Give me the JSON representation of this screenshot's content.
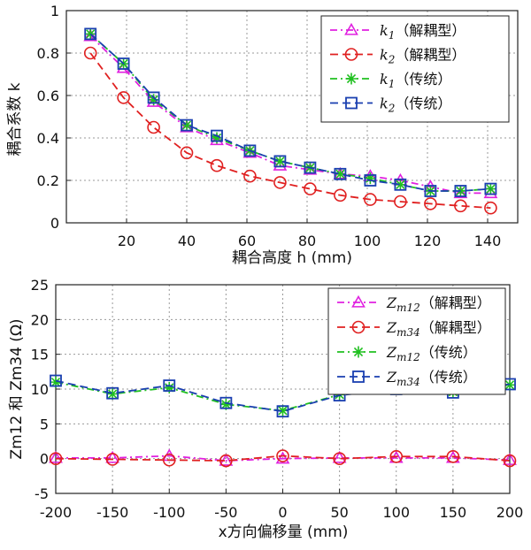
{
  "chart_data": [
    {
      "type": "line",
      "title": "",
      "xlabel": "耦合高度 h (mm)",
      "ylabel": "耦合系数 k",
      "xlim": [
        0,
        150
      ],
      "ylim": [
        0,
        1
      ],
      "xticks": [
        20,
        40,
        60,
        80,
        100,
        120,
        140
      ],
      "yticks": [
        0,
        0.2,
        0.4,
        0.6,
        0.8,
        1
      ],
      "ytick_labels": [
        "0",
        "0.2",
        "0.4",
        "0.6",
        "0.8",
        "1"
      ],
      "grid": true,
      "legend_position": "top-right",
      "x": [
        8,
        19,
        29,
        40,
        50,
        61,
        71,
        81,
        91,
        101,
        111,
        121,
        131,
        141
      ],
      "series": [
        {
          "name": "k1（解耦型）",
          "color": "#e020e0",
          "marker": "triangle",
          "dash": "8 4 2 4",
          "values": [
            0.88,
            0.73,
            0.57,
            0.45,
            0.39,
            0.33,
            0.27,
            0.25,
            0.23,
            0.22,
            0.2,
            0.17,
            0.14,
            0.14
          ]
        },
        {
          "name": "k2（解耦型）",
          "color": "#e02020",
          "marker": "circle",
          "dash": "9 5",
          "values": [
            0.8,
            0.59,
            0.45,
            0.33,
            0.27,
            0.22,
            0.19,
            0.16,
            0.13,
            0.11,
            0.1,
            0.09,
            0.08,
            0.07
          ]
        },
        {
          "name": "k1（传统）",
          "color": "#20c020",
          "marker": "star",
          "dash": "8 4 2 4",
          "values": [
            0.89,
            0.75,
            0.58,
            0.46,
            0.4,
            0.34,
            0.29,
            0.26,
            0.23,
            0.21,
            0.18,
            0.15,
            0.15,
            0.16
          ]
        },
        {
          "name": "k2（传统）",
          "color": "#1a3fb0",
          "marker": "square",
          "dash": "9 5",
          "values": [
            0.89,
            0.75,
            0.59,
            0.46,
            0.41,
            0.34,
            0.29,
            0.26,
            0.23,
            0.2,
            0.18,
            0.15,
            0.15,
            0.16
          ]
        }
      ]
    },
    {
      "type": "line",
      "title": "",
      "xlabel": "x方向偏移量 (mm)",
      "ylabel": "Zm12 和 Zm34 (Ω)",
      "xlim": [
        -200,
        200
      ],
      "ylim": [
        -5,
        25
      ],
      "xticks": [
        -200,
        -150,
        -100,
        -50,
        0,
        50,
        100,
        150,
        200
      ],
      "yticks": [
        -5,
        0,
        5,
        10,
        15,
        20,
        25
      ],
      "grid": true,
      "legend_position": "top-right",
      "x": [
        -200,
        -150,
        -100,
        -50,
        0,
        50,
        100,
        150,
        200
      ],
      "series": [
        {
          "name": "Zm12（解耦型）",
          "color": "#e020e0",
          "marker": "triangle",
          "dash": "8 4 2 4",
          "values": [
            0.1,
            0.1,
            0.4,
            -0.3,
            0.0,
            0.1,
            0.1,
            0.1,
            -0.2
          ]
        },
        {
          "name": "Zm34（解耦型）",
          "color": "#e02020",
          "marker": "circle",
          "dash": "9 5",
          "values": [
            0.0,
            -0.1,
            -0.2,
            -0.3,
            0.4,
            0.0,
            0.3,
            0.3,
            -0.3
          ]
        },
        {
          "name": "Zm12（传统）",
          "color": "#20c020",
          "marker": "star",
          "dash": "8 4 2 4",
          "values": [
            11.0,
            9.3,
            10.2,
            7.8,
            6.9,
            9.2,
            10.1,
            9.6,
            10.6
          ]
        },
        {
          "name": "Zm34（传统）",
          "color": "#1a3fb0",
          "marker": "square",
          "dash": "9 5",
          "values": [
            11.2,
            9.4,
            10.5,
            8.0,
            6.8,
            9.1,
            10.0,
            9.5,
            10.7
          ]
        }
      ]
    }
  ],
  "legends": [
    [
      {
        "sym": "k",
        "sub": "1",
        "tail": "（解耦型）"
      },
      {
        "sym": "k",
        "sub": "2",
        "tail": "（解耦型）"
      },
      {
        "sym": "k",
        "sub": "1",
        "tail": "（传统）"
      },
      {
        "sym": "k",
        "sub": "2",
        "tail": "（传统）"
      }
    ],
    [
      {
        "sym": "Z",
        "sub": "m12",
        "tail": "（解耦型）"
      },
      {
        "sym": "Z",
        "sub": "m34",
        "tail": "（解耦型）"
      },
      {
        "sym": "Z",
        "sub": "m12",
        "tail": "（传统）"
      },
      {
        "sym": "Z",
        "sub": "m34",
        "tail": "（传统）"
      }
    ]
  ]
}
